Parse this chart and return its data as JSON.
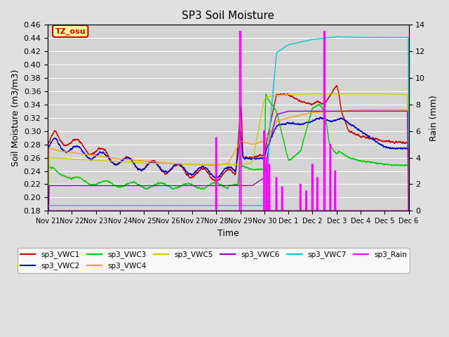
{
  "title": "SP3 Soil Moisture",
  "ylabel_left": "Soil Moisture (m3/m3)",
  "ylabel_right": "Rain (mm)",
  "xlabel": "Time",
  "ylim_left": [
    0.18,
    0.46
  ],
  "ylim_right": [
    0,
    14
  ],
  "background_color": "#e0e0e0",
  "plot_bg_color": "#d4d4d4",
  "grid_color": "#ffffff",
  "annotation_text": "TZ_osu",
  "annotation_bg": "#ffff99",
  "annotation_border": "#cc0000",
  "series_colors": {
    "sp3_VWC1": "#cc0000",
    "sp3_VWC2": "#0000cc",
    "sp3_VWC3": "#00cc00",
    "sp3_VWC4": "#ff9900",
    "sp3_VWC5": "#cccc00",
    "sp3_VWC6": "#9900cc",
    "sp3_VWC7": "#00cccc",
    "sp3_Rain": "#ff00ff"
  },
  "tick_labels": [
    "Nov 21",
    "Nov 22",
    "Nov 23",
    "Nov 24",
    "Nov 25",
    "Nov 26",
    "Nov 27",
    "Nov 28",
    "Nov 29",
    "Nov 30",
    "Dec 1",
    "Dec 2",
    "Dec 3",
    "Dec 4",
    "Dec 5",
    "Dec 6"
  ],
  "yticks_left": [
    0.18,
    0.2,
    0.22,
    0.24,
    0.26,
    0.28,
    0.3,
    0.32,
    0.34,
    0.36,
    0.38,
    0.4,
    0.42,
    0.44,
    0.46
  ],
  "yticks_right": [
    0,
    2,
    4,
    6,
    8,
    10,
    12,
    14
  ]
}
